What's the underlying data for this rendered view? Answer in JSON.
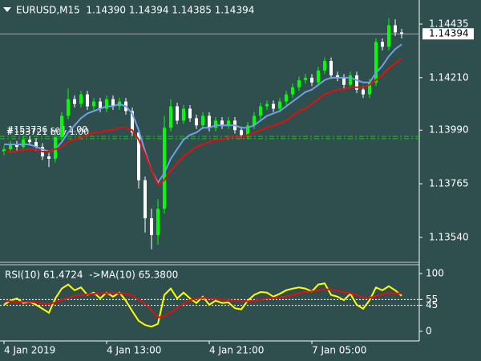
{
  "header": "EURUSD,M15  1.14390 1.14394 1.14385 1.14394",
  "chart_data": [
    {
      "type": "candlestick",
      "categories": [
        "4 Jan 2019",
        null,
        null,
        null,
        null,
        null,
        null,
        null,
        null,
        null,
        null,
        null,
        null,
        null,
        null,
        null,
        "4 Jan 13:00",
        null,
        null,
        null,
        null,
        null,
        null,
        null,
        null,
        null,
        null,
        null,
        null,
        null,
        null,
        null,
        "4 Jan 21:00",
        null,
        null,
        null,
        null,
        null,
        null,
        null,
        null,
        null,
        null,
        null,
        null,
        null,
        null,
        null,
        "7 Jan 05:00",
        null,
        null,
        null,
        null,
        null,
        null,
        null,
        null,
        null,
        null,
        null,
        null,
        null,
        null
      ],
      "open": [
        1.139,
        1.1391,
        1.1393,
        1.1392,
        1.1395,
        1.1394,
        1.1392,
        1.1388,
        1.1387,
        1.1396,
        1.1405,
        1.1412,
        1.141,
        1.1414,
        1.1409,
        1.1411,
        1.1408,
        1.1412,
        1.1409,
        1.1411,
        1.1407,
        1.1398,
        1.1378,
        1.1362,
        1.1355,
        1.1366,
        1.14,
        1.1409,
        1.1403,
        1.1408,
        1.1404,
        1.1401,
        1.1405,
        1.14,
        1.1403,
        1.1401,
        1.1403,
        1.1399,
        1.1397,
        1.1401,
        1.1405,
        1.1409,
        1.141,
        1.1408,
        1.1411,
        1.1414,
        1.1417,
        1.142,
        1.1421,
        1.1419,
        1.1424,
        1.1428,
        1.1422,
        1.1421,
        1.1418,
        1.1422,
        1.1416,
        1.1414,
        1.1419,
        1.1436,
        1.1434,
        1.1443,
        1.144
      ],
      "high": [
        1.13925,
        1.13945,
        1.13945,
        1.13965,
        1.13965,
        1.13955,
        1.13935,
        1.13895,
        1.13975,
        1.14065,
        1.14165,
        1.14135,
        1.14155,
        1.14155,
        1.14125,
        1.14125,
        1.14135,
        1.14135,
        1.14125,
        1.14125,
        1.14085,
        1.13995,
        1.13795,
        1.1366,
        1.137,
        1.1405,
        1.1412,
        1.14105,
        1.14095,
        1.14095,
        1.14055,
        1.14065,
        1.14065,
        1.14045,
        1.14045,
        1.14045,
        1.14045,
        1.14005,
        1.14025,
        1.14065,
        1.14105,
        1.14115,
        1.14115,
        1.14125,
        1.14155,
        1.14185,
        1.14215,
        1.14225,
        1.14225,
        1.14255,
        1.14295,
        1.14295,
        1.14235,
        1.14225,
        1.14235,
        1.14235,
        1.14175,
        1.14205,
        1.14375,
        1.14375,
        1.1446,
        1.14455,
        1.14415
      ],
      "low": [
        1.13885,
        1.13895,
        1.13905,
        1.13905,
        1.13925,
        1.13905,
        1.13865,
        1.13835,
        1.13855,
        1.13945,
        1.14035,
        1.14085,
        1.14085,
        1.14075,
        1.14075,
        1.14065,
        1.14065,
        1.14075,
        1.14075,
        1.14055,
        1.13965,
        1.13745,
        1.1356,
        1.1349,
        1.1351,
        1.1364,
        1.13985,
        1.14015,
        1.14015,
        1.14025,
        1.13995,
        1.13995,
        1.13985,
        1.13985,
        1.13995,
        1.13995,
        1.13975,
        1.13955,
        1.13955,
        1.13995,
        1.14035,
        1.14075,
        1.14065,
        1.14065,
        1.14095,
        1.14125,
        1.14155,
        1.14185,
        1.14175,
        1.14175,
        1.14225,
        1.14205,
        1.14195,
        1.14165,
        1.14165,
        1.14145,
        1.14125,
        1.14125,
        1.14175,
        1.14325,
        1.14325,
        1.14385,
        1.14375
      ],
      "close": [
        1.1391,
        1.1393,
        1.1392,
        1.1395,
        1.1394,
        1.1392,
        1.1388,
        1.1387,
        1.1396,
        1.1405,
        1.1412,
        1.141,
        1.1414,
        1.1409,
        1.1411,
        1.1408,
        1.1412,
        1.1409,
        1.1411,
        1.1407,
        1.1398,
        1.1378,
        1.1362,
        1.1355,
        1.1366,
        1.14,
        1.1409,
        1.1403,
        1.1408,
        1.1404,
        1.1401,
        1.1405,
        1.14,
        1.1403,
        1.1401,
        1.1403,
        1.1399,
        1.1397,
        1.1401,
        1.1405,
        1.1409,
        1.141,
        1.1408,
        1.1411,
        1.1414,
        1.1417,
        1.142,
        1.1421,
        1.1419,
        1.1424,
        1.1428,
        1.1422,
        1.1421,
        1.1418,
        1.1422,
        1.1416,
        1.1414,
        1.1419,
        1.1436,
        1.1434,
        1.1443,
        1.144,
        1.14394
      ],
      "up_color": "#00ff00",
      "down_color": "#ffffff",
      "series": [
        {
          "color": "#6f9fe8",
          "values": [
            1.1393,
            1.1393,
            1.1393,
            1.1393,
            1.1393,
            1.1392,
            1.1391,
            1.139,
            1.1391,
            1.1394,
            1.1398,
            1.1401,
            1.1404,
            1.1406,
            1.1407,
            1.1408,
            1.1409,
            1.1409,
            1.141,
            1.1409,
            1.1406,
            1.1399,
            1.139,
            1.1382,
            1.1377,
            1.1381,
            1.1387,
            1.1391,
            1.1395,
            1.1397,
            1.1398,
            1.14,
            1.14,
            1.1401,
            1.1401,
            1.1401,
            1.1401,
            1.14,
            1.14,
            1.1401,
            1.1403,
            1.1405,
            1.1406,
            1.1407,
            1.1409,
            1.1411,
            1.1413,
            1.1415,
            1.1416,
            1.1418,
            1.142,
            1.1421,
            1.1421,
            1.1421,
            1.1421,
            1.142,
            1.1419,
            1.1419,
            1.1423,
            1.1426,
            1.143,
            1.1433,
            1.1435
          ]
        },
        {
          "color": "#e01010",
          "values": [
            1.139,
            1.139,
            1.139,
            1.1391,
            1.1391,
            1.1391,
            1.139,
            1.139,
            1.1391,
            1.1392,
            1.1394,
            1.1395,
            1.1396,
            1.1397,
            1.1398,
            1.1398,
            1.1399,
            1.1399,
            1.14,
            1.14,
            1.1399,
            1.1395,
            1.1389,
            1.1382,
            1.1376,
            1.1378,
            1.1382,
            1.1385,
            1.1388,
            1.139,
            1.1392,
            1.1393,
            1.1394,
            1.1395,
            1.1395,
            1.1396,
            1.1396,
            1.1396,
            1.1397,
            1.1398,
            1.1399,
            1.14,
            1.1401,
            1.1402,
            1.1403,
            1.1405,
            1.1407,
            1.1408,
            1.141,
            1.1412,
            1.1414,
            1.1415,
            1.1416,
            1.1416,
            1.1417,
            1.1417,
            1.1417,
            1.1418,
            1.142,
            1.1422,
            1.1425,
            1.1427,
            1.1429
          ]
        }
      ],
      "order_lines": [
        {
          "value": 1.13964,
          "label": "#153736 sell 1.00"
        },
        {
          "value": 1.13954,
          "label": "#153721 buy 1.00"
        }
      ],
      "order_color": "#20c020",
      "bid": {
        "value": 1.14394,
        "label": "1.14394"
      },
      "ylim": [
        1.13432,
        1.14536
      ],
      "yticks": [
        {
          "value": 1.1354,
          "label": "1.13540"
        },
        1.13765,
        {
          "value": 1.1399,
          "label": "1.13990"
        },
        {
          "value": 1.1421,
          "label": "1.14210"
        },
        1.14435
      ]
    },
    {
      "type": "line",
      "title": "RSI(10) 61.4724  ->MA(10) 65.3800",
      "series": [
        {
          "color": "#ffff00",
          "values": [
            46,
            53,
            57,
            49,
            51,
            46,
            39,
            32,
            57,
            74,
            81,
            71,
            76,
            63,
            67,
            57,
            67,
            60,
            67,
            53,
            35,
            18,
            11,
            8,
            13,
            63,
            74,
            57,
            67,
            57,
            49,
            60,
            46,
            53,
            49,
            50,
            40,
            38,
            53,
            63,
            68,
            67,
            60,
            65,
            71,
            74,
            76,
            74,
            69,
            81,
            83,
            63,
            60,
            54,
            65,
            46,
            39,
            54,
            76,
            71,
            78,
            71,
            61.4724
          ]
        },
        {
          "color": "#e01010",
          "values": [
            52,
            52,
            51,
            51,
            51,
            50,
            49,
            47,
            50,
            54,
            58,
            61,
            63,
            64,
            65,
            66,
            66,
            66,
            66,
            65,
            62,
            55,
            48,
            36,
            24,
            26,
            33,
            40,
            48,
            54,
            57,
            58,
            57,
            56,
            55,
            54,
            53,
            52,
            52,
            53,
            55,
            57,
            58,
            59,
            60,
            63,
            66,
            68,
            69,
            71,
            73,
            72,
            70,
            68,
            66,
            63,
            59,
            58,
            61,
            64,
            66,
            66,
            65.38
          ]
        }
      ],
      "levels": [
        55,
        45
      ],
      "ylim": [
        -16.7,
        112.5
      ],
      "yticks": [
        100,
        55,
        45,
        0
      ]
    }
  ]
}
